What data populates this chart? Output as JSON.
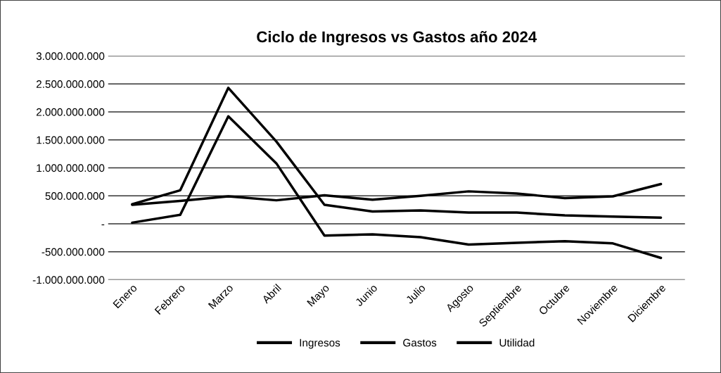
{
  "chart_data": {
    "type": "line",
    "title": "Ciclo de Ingresos vs Gastos año 2024",
    "categories": [
      "Enero",
      "Febrero",
      "Marzo",
      "Abril",
      "Mayo",
      "Junio",
      "Julio",
      "Agosto",
      "Septiembre",
      "Octubre",
      "Noviembre",
      "Diciembre"
    ],
    "series": [
      {
        "name": "Ingresos",
        "color": "#000000",
        "values": [
          350000000,
          600000000,
          2430000000,
          1470000000,
          340000000,
          220000000,
          240000000,
          200000000,
          200000000,
          150000000,
          130000000,
          110000000
        ]
      },
      {
        "name": "Gastos",
        "color": "#000000",
        "values": [
          340000000,
          410000000,
          490000000,
          420000000,
          510000000,
          430000000,
          500000000,
          580000000,
          540000000,
          460000000,
          490000000,
          710000000
        ]
      },
      {
        "name": "Utilidad",
        "color": "#000000",
        "values": [
          20000000,
          160000000,
          1920000000,
          1080000000,
          -210000000,
          -190000000,
          -240000000,
          -370000000,
          -340000000,
          -310000000,
          -350000000,
          -610000000
        ]
      }
    ],
    "ylim": [
      -1000000000,
      3000000000
    ],
    "yticks": [
      {
        "value": -1000000000,
        "label": "-1.000.000.000"
      },
      {
        "value": -500000000,
        "label": "-500.000.000"
      },
      {
        "value": 0,
        "label": "-"
      },
      {
        "value": 500000000,
        "label": "500.000.000"
      },
      {
        "value": 1000000000,
        "label": "1.000.000.000"
      },
      {
        "value": 1500000000,
        "label": "1.500.000.000"
      },
      {
        "value": 2000000000,
        "label": "2.000.000.000"
      },
      {
        "value": 2500000000,
        "label": "2.500.000.000"
      },
      {
        "value": 3000000000,
        "label": "3.000.000.000"
      }
    ],
    "grid": "y",
    "legend": "bottom",
    "marker": "none",
    "line_style": "solid"
  }
}
